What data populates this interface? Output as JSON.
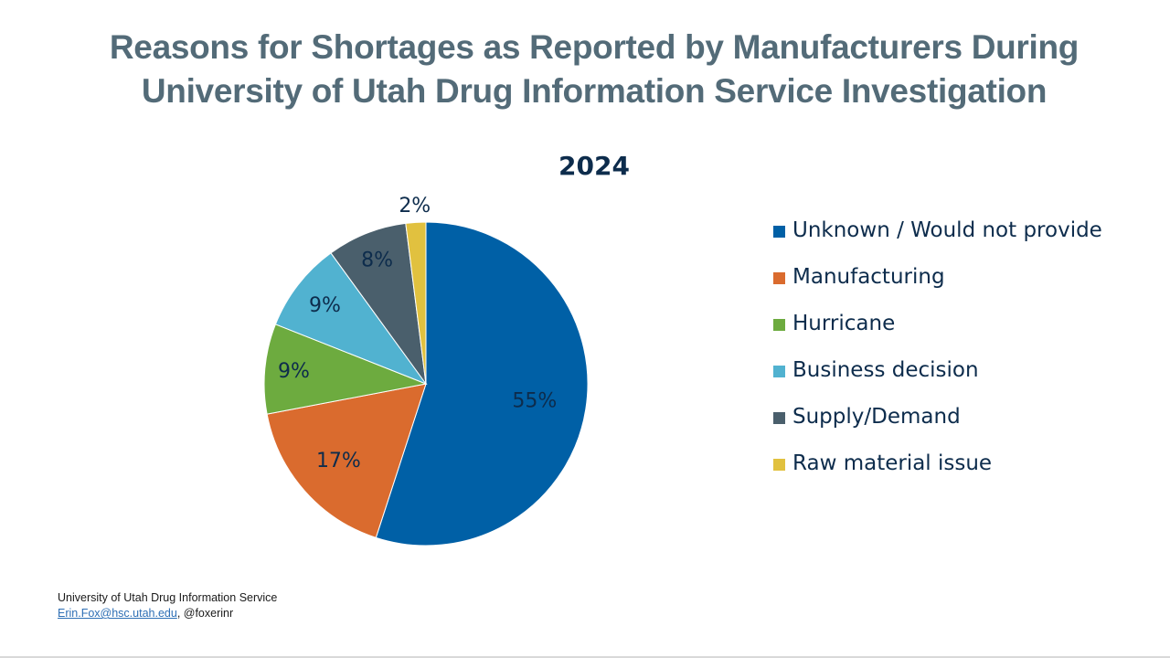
{
  "title": {
    "line1": "Reasons for Shortages as Reported by Manufacturers During",
    "line2": "University of Utah Drug Information Service Investigation"
  },
  "chart_data": {
    "type": "pie",
    "title": "2024",
    "categories": [
      "Unknown / Would not provide",
      "Manufacturing",
      "Hurricane",
      "Business decision",
      "Supply/Demand",
      "Raw material issue"
    ],
    "values": [
      55,
      17,
      9,
      9,
      8,
      2
    ],
    "labels": [
      "55%",
      "17%",
      "9%",
      "9%",
      "8%",
      "2%"
    ],
    "colors": [
      "#0060a6",
      "#da6b2e",
      "#6dab3f",
      "#51b2d0",
      "#4a5f6c",
      "#e1c13f"
    ],
    "legend_position": "right",
    "start": "12 o'clock",
    "direction": "clockwise"
  },
  "footer": {
    "org": "University of Utah Drug Information Service",
    "email": "Erin.Fox@hsc.utah.edu",
    "handle": ", @foxerinr"
  }
}
